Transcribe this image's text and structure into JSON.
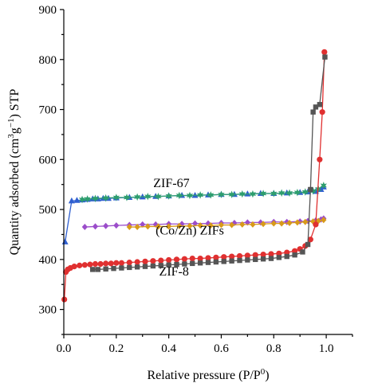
{
  "chart_data": {
    "type": "line",
    "xlabel": "Relative pressure (P/P",
    "xlabel_sup": "0",
    "xlabel_end": ")",
    "ylabel": "Quantity adsorbed (cm",
    "ylabel_sup1": "3",
    "ylabel_mid": "g",
    "ylabel_sup2": "−1",
    "ylabel_end": ") STP",
    "xlim": [
      0.0,
      1.1
    ],
    "ylim": [
      250,
      900
    ],
    "x_ticks": [
      "0.0",
      "0.2",
      "0.4",
      "0.6",
      "0.8",
      "1.0"
    ],
    "y_ticks": [
      "300",
      "400",
      "500",
      "600",
      "700",
      "800",
      "900"
    ],
    "annotations": [
      {
        "text": "ZIF-67",
        "x": 0.41,
        "y": 545
      },
      {
        "text": "(Co/Zn) ZIFs",
        "x": 0.48,
        "y": 450
      },
      {
        "text": "ZIF-8",
        "x": 0.42,
        "y": 368
      }
    ],
    "series": [
      {
        "name": "ZIF-67",
        "color": "#2f5fd0",
        "marker": "triangle",
        "points": [
          [
            0.005,
            435
          ],
          [
            0.03,
            517
          ],
          [
            0.05,
            518
          ],
          [
            0.07,
            519
          ],
          [
            0.09,
            520
          ],
          [
            0.11,
            521
          ],
          [
            0.13,
            521
          ],
          [
            0.15,
            522
          ],
          [
            0.17,
            522
          ],
          [
            0.2,
            523
          ],
          [
            0.25,
            524
          ],
          [
            0.3,
            525
          ],
          [
            0.35,
            526
          ],
          [
            0.4,
            527
          ],
          [
            0.45,
            528
          ],
          [
            0.5,
            528
          ],
          [
            0.55,
            529
          ],
          [
            0.6,
            530
          ],
          [
            0.65,
            530
          ],
          [
            0.7,
            531
          ],
          [
            0.75,
            532
          ],
          [
            0.8,
            532
          ],
          [
            0.85,
            533
          ],
          [
            0.9,
            534
          ],
          [
            0.93,
            535
          ],
          [
            0.96,
            536
          ],
          [
            0.98,
            540
          ],
          [
            0.99,
            545
          ]
        ]
      },
      {
        "name": "ZIF-67 desorption",
        "color": "#2e9e6e",
        "marker": "star",
        "points": [
          [
            0.99,
            548
          ],
          [
            0.97,
            541
          ],
          [
            0.95,
            537
          ],
          [
            0.92,
            535
          ],
          [
            0.89,
            534
          ],
          [
            0.86,
            533
          ],
          [
            0.83,
            533
          ],
          [
            0.8,
            532
          ],
          [
            0.76,
            532
          ],
          [
            0.72,
            531
          ],
          [
            0.68,
            531
          ],
          [
            0.64,
            530
          ],
          [
            0.6,
            530
          ],
          [
            0.56,
            529
          ],
          [
            0.52,
            529
          ],
          [
            0.48,
            528
          ],
          [
            0.44,
            528
          ],
          [
            0.4,
            527
          ],
          [
            0.36,
            526
          ],
          [
            0.32,
            526
          ],
          [
            0.28,
            525
          ],
          [
            0.24,
            524
          ],
          [
            0.2,
            524
          ],
          [
            0.16,
            523
          ],
          [
            0.12,
            522
          ],
          [
            0.09,
            521
          ],
          [
            0.07,
            520
          ]
        ]
      },
      {
        "name": "(Co/Zn) ZIFs",
        "color": "#9b4dca",
        "marker": "diamond",
        "points": [
          [
            0.08,
            465
          ],
          [
            0.12,
            466
          ],
          [
            0.16,
            467
          ],
          [
            0.2,
            468
          ],
          [
            0.25,
            469
          ],
          [
            0.3,
            470
          ],
          [
            0.35,
            470
          ],
          [
            0.4,
            471
          ],
          [
            0.45,
            471
          ],
          [
            0.5,
            472
          ],
          [
            0.55,
            472
          ],
          [
            0.6,
            473
          ],
          [
            0.65,
            473
          ],
          [
            0.7,
            474
          ],
          [
            0.75,
            474
          ],
          [
            0.8,
            475
          ],
          [
            0.85,
            475
          ],
          [
            0.9,
            476
          ],
          [
            0.93,
            477
          ],
          [
            0.96,
            478
          ],
          [
            0.98,
            480
          ],
          [
            0.99,
            482
          ]
        ]
      },
      {
        "name": "(Co/Zn) ZIFs desorption",
        "color": "#d89a1a",
        "marker": "diamond",
        "points": [
          [
            0.99,
            479
          ],
          [
            0.97,
            477
          ],
          [
            0.95,
            476
          ],
          [
            0.92,
            475
          ],
          [
            0.89,
            474
          ],
          [
            0.86,
            473
          ],
          [
            0.83,
            472
          ],
          [
            0.8,
            472
          ],
          [
            0.76,
            471
          ],
          [
            0.72,
            470
          ],
          [
            0.68,
            470
          ],
          [
            0.64,
            469
          ],
          [
            0.6,
            469
          ],
          [
            0.56,
            468
          ],
          [
            0.52,
            468
          ],
          [
            0.48,
            467
          ],
          [
            0.44,
            467
          ],
          [
            0.4,
            466
          ],
          [
            0.36,
            466
          ],
          [
            0.32,
            466
          ],
          [
            0.28,
            465
          ],
          [
            0.25,
            465
          ]
        ]
      },
      {
        "name": "ZIF-8",
        "color": "#e03030",
        "marker": "circle",
        "points": [
          [
            0.002,
            320
          ],
          [
            0.008,
            375
          ],
          [
            0.015,
            380
          ],
          [
            0.025,
            383
          ],
          [
            0.04,
            386
          ],
          [
            0.06,
            388
          ],
          [
            0.08,
            389
          ],
          [
            0.1,
            390
          ],
          [
            0.12,
            391
          ],
          [
            0.14,
            391
          ],
          [
            0.16,
            392
          ],
          [
            0.18,
            392
          ],
          [
            0.2,
            393
          ],
          [
            0.22,
            393
          ],
          [
            0.25,
            394
          ],
          [
            0.28,
            395
          ],
          [
            0.31,
            396
          ],
          [
            0.34,
            397
          ],
          [
            0.37,
            398
          ],
          [
            0.4,
            399
          ],
          [
            0.43,
            400
          ],
          [
            0.46,
            401
          ],
          [
            0.49,
            402
          ],
          [
            0.52,
            402
          ],
          [
            0.55,
            403
          ],
          [
            0.58,
            404
          ],
          [
            0.61,
            405
          ],
          [
            0.64,
            406
          ],
          [
            0.67,
            407
          ],
          [
            0.7,
            408
          ],
          [
            0.73,
            409
          ],
          [
            0.76,
            410
          ],
          [
            0.79,
            411
          ],
          [
            0.82,
            412
          ],
          [
            0.85,
            414
          ],
          [
            0.88,
            417
          ],
          [
            0.9,
            421
          ],
          [
            0.92,
            427
          ],
          [
            0.94,
            440
          ],
          [
            0.96,
            470
          ],
          [
            0.975,
            600
          ],
          [
            0.985,
            695
          ],
          [
            0.993,
            815
          ]
        ]
      },
      {
        "name": "ZIF-8 desorption",
        "color": "#555555",
        "marker": "square",
        "points": [
          [
            0.995,
            805
          ],
          [
            0.975,
            710
          ],
          [
            0.96,
            705
          ],
          [
            0.95,
            695
          ],
          [
            0.94,
            540
          ],
          [
            0.93,
            430
          ],
          [
            0.91,
            415
          ],
          [
            0.88,
            409
          ],
          [
            0.85,
            406
          ],
          [
            0.82,
            404
          ],
          [
            0.79,
            402
          ],
          [
            0.76,
            401
          ],
          [
            0.73,
            400
          ],
          [
            0.7,
            399
          ],
          [
            0.67,
            398
          ],
          [
            0.64,
            397
          ],
          [
            0.61,
            396
          ],
          [
            0.58,
            395
          ],
          [
            0.55,
            394
          ],
          [
            0.52,
            393
          ],
          [
            0.49,
            392
          ],
          [
            0.46,
            391
          ],
          [
            0.43,
            390
          ],
          [
            0.4,
            389
          ],
          [
            0.37,
            388
          ],
          [
            0.34,
            387
          ],
          [
            0.31,
            386
          ],
          [
            0.28,
            385
          ],
          [
            0.25,
            384
          ],
          [
            0.22,
            383
          ],
          [
            0.19,
            382
          ],
          [
            0.16,
            381
          ],
          [
            0.13,
            380
          ],
          [
            0.11,
            380
          ]
        ]
      }
    ]
  }
}
